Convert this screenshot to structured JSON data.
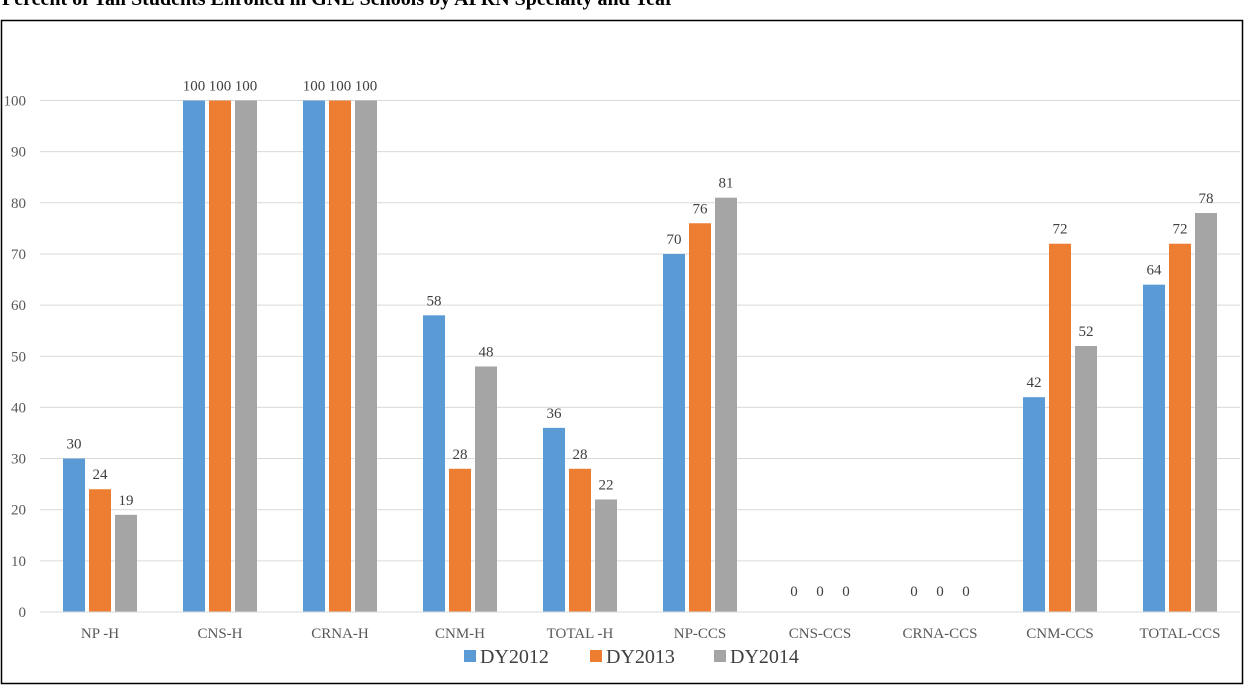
{
  "chart_data": {
    "type": "bar",
    "title": "Percent of Tall Students Enrolled in GNE Schools by APRN Specialty and Year",
    "xlabel": "",
    "ylabel": "",
    "ylim": [
      0,
      100
    ],
    "yticks": [
      0,
      10,
      20,
      30,
      40,
      50,
      60,
      70,
      80,
      90,
      100
    ],
    "grid": true,
    "legend_position": "bottom",
    "categories": [
      "NP -H",
      "CNS-H",
      "CRNA-H",
      "CNM-H",
      "TOTAL -H",
      "NP-CCS",
      "CNS-CCS",
      "CRNA-CCS",
      "CNM-CCS",
      "TOTAL-CCS"
    ],
    "series": [
      {
        "name": "DY2012",
        "color": "#5B9BD5",
        "values": [
          30,
          100,
          100,
          58,
          36,
          70,
          0,
          0,
          42,
          64
        ]
      },
      {
        "name": "DY2013",
        "color": "#ED7D31",
        "values": [
          24,
          100,
          100,
          28,
          28,
          76,
          0,
          0,
          72,
          72
        ]
      },
      {
        "name": "DY2014",
        "color": "#A5A5A5",
        "values": [
          19,
          100,
          100,
          48,
          22,
          81,
          0,
          0,
          52,
          78
        ]
      }
    ]
  }
}
